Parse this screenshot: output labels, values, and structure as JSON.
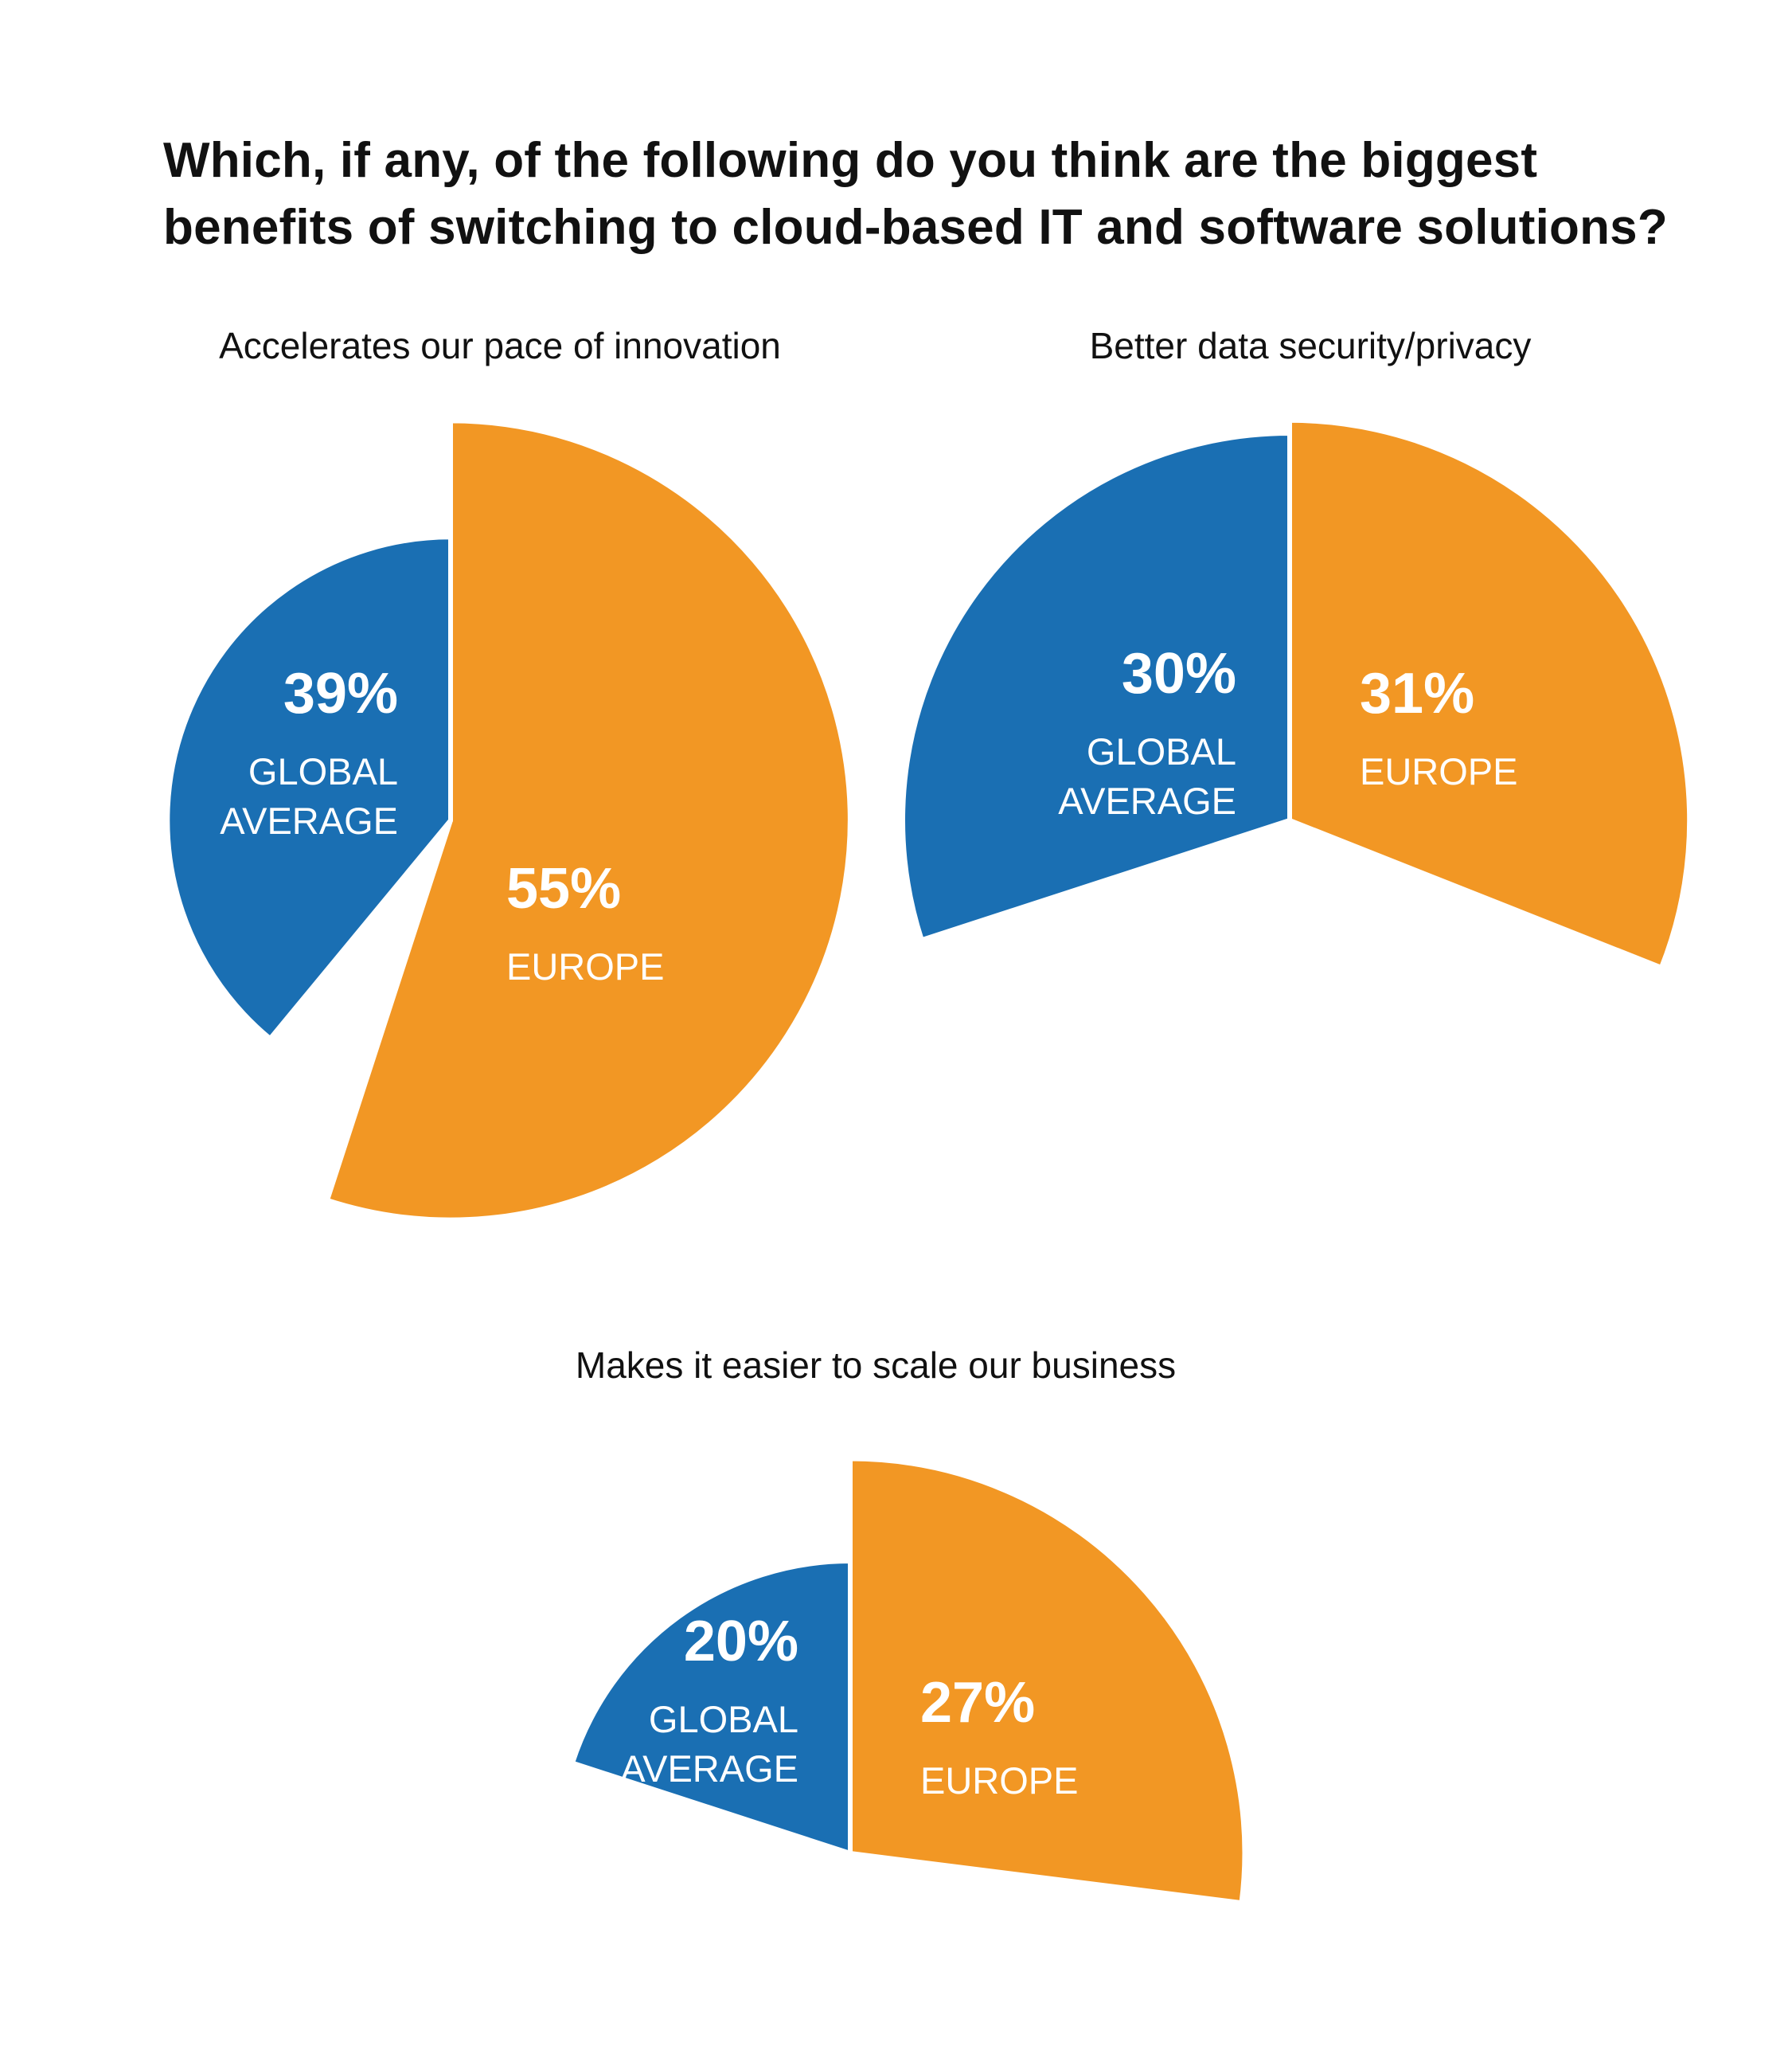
{
  "title_lines": [
    "Which, if any, of the following do you think are the biggest",
    "benefits of switching to cloud-based IT and software solutions?"
  ],
  "colors": {
    "global": "#1a6fb3",
    "europe": "#f29724",
    "text_on_slice": "#ffffff",
    "subtitle": "#111111"
  },
  "chart_data": [
    {
      "type": "pie",
      "title": "Accelerates our pace of innovation",
      "series": [
        {
          "name": "GLOBAL AVERAGE",
          "value": 39,
          "label": "39%",
          "label_lines": [
            "GLOBAL",
            "AVERAGE"
          ]
        },
        {
          "name": "EUROPE",
          "value": 55,
          "label": "55%",
          "label_lines": [
            "EUROPE"
          ]
        }
      ]
    },
    {
      "type": "pie",
      "title": "Better data security/privacy",
      "series": [
        {
          "name": "GLOBAL AVERAGE",
          "value": 30,
          "label": "30%",
          "label_lines": [
            "GLOBAL",
            "AVERAGE"
          ]
        },
        {
          "name": "EUROPE",
          "value": 31,
          "label": "31%",
          "label_lines": [
            "EUROPE"
          ]
        }
      ]
    },
    {
      "type": "pie",
      "title": "Makes it easier to scale our business",
      "series": [
        {
          "name": "GLOBAL AVERAGE",
          "value": 20,
          "label": "20%",
          "label_lines": [
            "GLOBAL",
            "AVERAGE"
          ]
        },
        {
          "name": "EUROPE",
          "value": 27,
          "label": "27%",
          "label_lines": [
            "EUROPE"
          ]
        }
      ]
    }
  ]
}
